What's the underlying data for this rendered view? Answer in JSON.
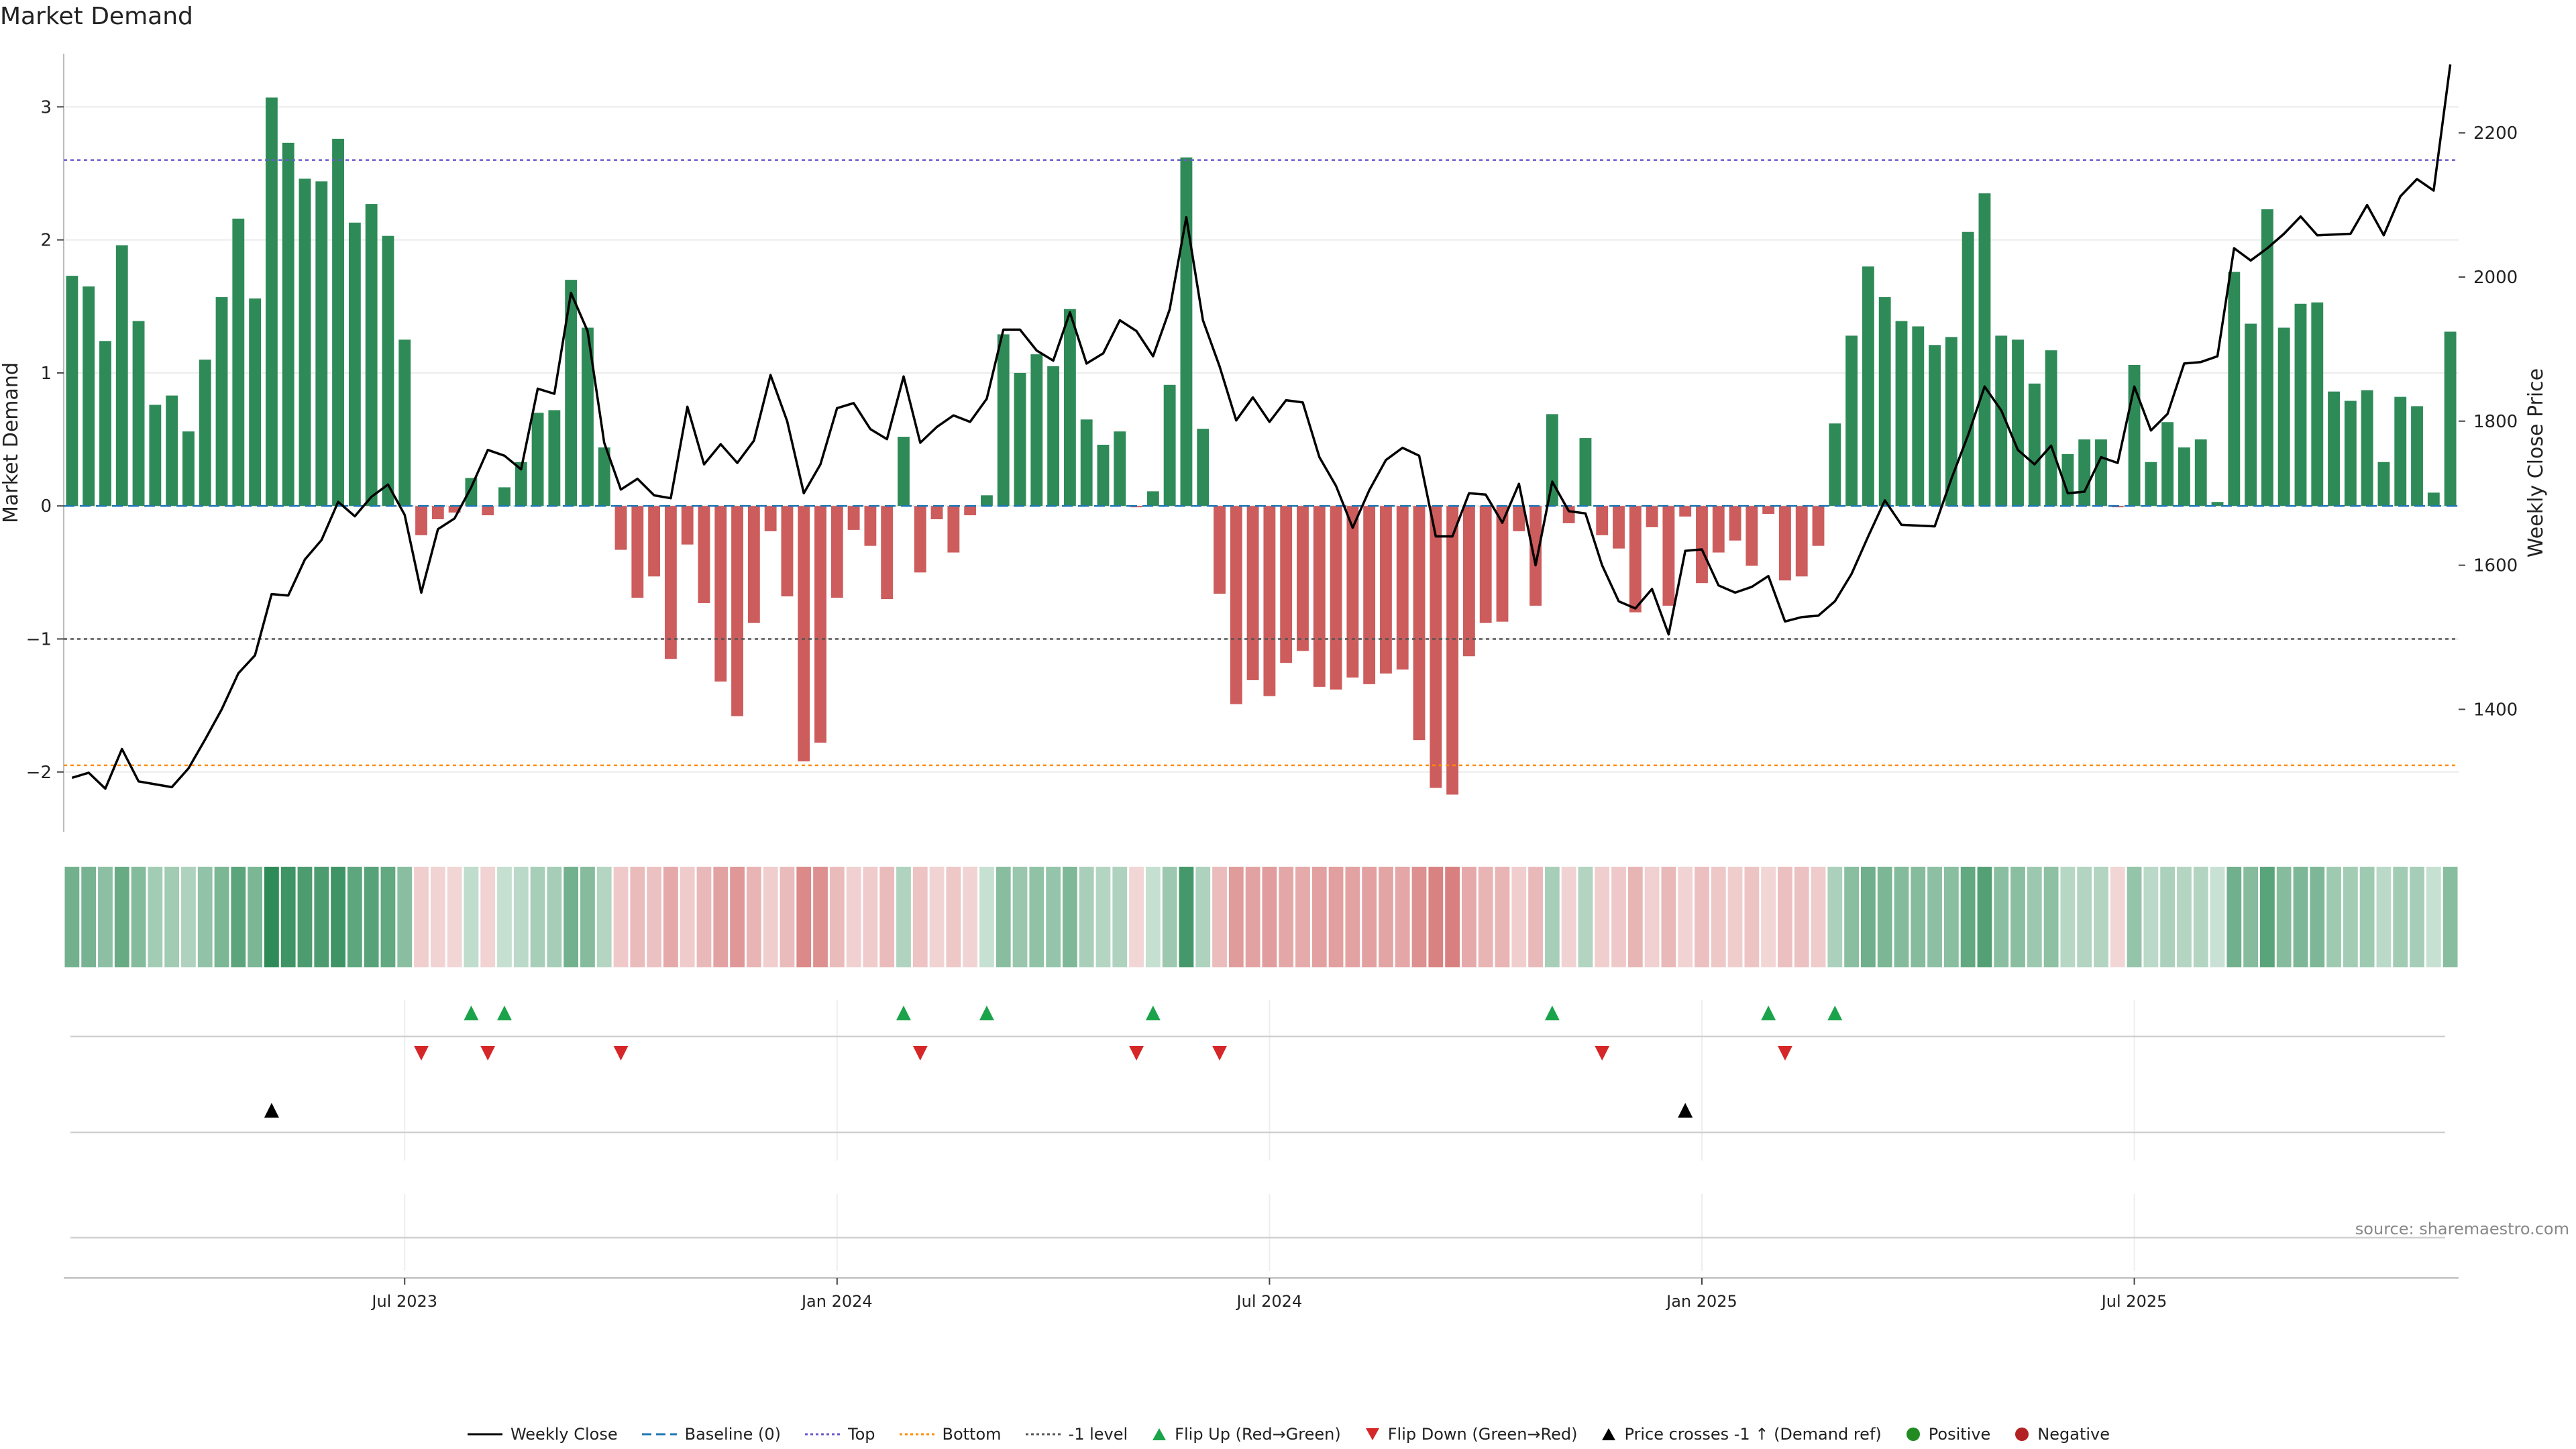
{
  "title": "Market Demand",
  "source": "source: sharemaestro.com",
  "colors": {
    "positive_bar": "#2e8b57",
    "negative_bar": "#cd5c5c",
    "price_line": "#000000",
    "baseline": "#1f77b4",
    "top_line": "#6a5acd",
    "bottom_line": "#ff8c00",
    "minus1_line": "#555555",
    "flip_up": "#1aa34a",
    "flip_down": "#d62728",
    "cross": "#000000",
    "positive_dot": "#228b22",
    "negative_dot": "#b22222"
  },
  "legend": [
    {
      "label": "Weekly Close",
      "symbol": "solid-line",
      "color": "#000000"
    },
    {
      "label": "Baseline (0)",
      "symbol": "dashed-line",
      "color": "#1f77b4"
    },
    {
      "label": "Top",
      "symbol": "dotted-line",
      "color": "#6a5acd"
    },
    {
      "label": "Bottom",
      "symbol": "dotted-line",
      "color": "#ff8c00"
    },
    {
      "label": "-1 level",
      "symbol": "dotted-line",
      "color": "#555555"
    },
    {
      "label": "Flip Up (Red→Green)",
      "symbol": "triangle-up",
      "color": "#1aa34a"
    },
    {
      "label": "Flip Down (Green→Red)",
      "symbol": "triangle-down",
      "color": "#d62728"
    },
    {
      "label": "Price crosses -1 ↑ (Demand ref)",
      "symbol": "triangle-up",
      "color": "#000000"
    },
    {
      "label": "Positive",
      "symbol": "dot",
      "color": "#228b22"
    },
    {
      "label": "Negative",
      "symbol": "dot",
      "color": "#b22222"
    }
  ],
  "chart_data": {
    "type": "bar",
    "title": "Market Demand",
    "ylabel": "Market Demand",
    "y2label": "Weekly Close Price",
    "ylim": [
      -2.45,
      3.4
    ],
    "y2lim": [
      1230,
      2310
    ],
    "yticks": [
      -2,
      -1,
      0,
      1,
      2,
      3
    ],
    "y2ticks": [
      1400,
      1600,
      1800,
      2000,
      2200
    ],
    "x_tick_labels": [
      {
        "label": "Jul 2023",
        "week": 20
      },
      {
        "label": "Jan 2024",
        "week": 46
      },
      {
        "label": "Jul 2024",
        "week": 72
      },
      {
        "label": "Jan 2025",
        "week": 98
      },
      {
        "label": "Jul 2025",
        "week": 124
      }
    ],
    "reference_levels": {
      "top": 2.6,
      "bottom": -1.95,
      "minus_one": -1,
      "baseline": 0
    },
    "series": [
      {
        "name": "Market Demand",
        "type": "bar",
        "values": [
          1.73,
          1.65,
          1.24,
          1.96,
          1.39,
          0.76,
          0.83,
          0.56,
          1.1,
          1.57,
          2.16,
          1.56,
          3.07,
          2.73,
          2.46,
          2.44,
          2.76,
          2.13,
          2.27,
          2.03,
          1.25,
          -0.22,
          -0.1,
          -0.05,
          0.21,
          -0.07,
          0.14,
          0.33,
          0.7,
          0.72,
          1.7,
          1.34,
          0.44,
          -0.33,
          -0.69,
          -0.53,
          -1.15,
          -0.29,
          -0.73,
          -1.32,
          -1.58,
          -0.88,
          -0.19,
          -0.68,
          -1.92,
          -1.78,
          -0.69,
          -0.18,
          -0.3,
          -0.7,
          0.52,
          -0.5,
          -0.1,
          -0.35,
          -0.07,
          0.08,
          1.29,
          1.0,
          1.14,
          1.05,
          1.48,
          0.65,
          0.46,
          0.56,
          -0.01,
          0.11,
          0.91,
          2.62,
          0.58,
          -0.66,
          -1.49,
          -1.31,
          -1.43,
          -1.18,
          -1.09,
          -1.36,
          -1.38,
          -1.29,
          -1.34,
          -1.26,
          -1.23,
          -1.76,
          -2.12,
          -2.17,
          -1.13,
          -0.88,
          -0.87,
          -0.19,
          -0.75,
          0.69,
          -0.13,
          0.51,
          -0.22,
          -0.32,
          -0.8,
          -0.16,
          -0.75,
          -0.08,
          -0.58,
          -0.35,
          -0.26,
          -0.45,
          -0.06,
          -0.56,
          -0.53,
          -0.3,
          0.62,
          1.28,
          1.8,
          1.57,
          1.39,
          1.35,
          1.21,
          1.27,
          2.06,
          2.35,
          1.28,
          1.25,
          0.92,
          1.17,
          0.39,
          0.5,
          0.5,
          -0.01,
          1.06,
          0.33,
          0.63,
          0.44,
          0.5,
          0.03,
          1.76,
          1.37,
          2.23,
          1.34,
          1.52,
          1.53,
          0.86,
          0.79,
          0.87,
          0.33,
          0.82,
          0.75,
          0.1,
          1.31
        ]
      },
      {
        "name": "Weekly Close",
        "type": "line",
        "axis": "right",
        "values": [
          1305,
          1312,
          1290,
          1345,
          1300,
          1296,
          1292,
          1318,
          1358,
          1400,
          1450,
          1475,
          1560,
          1558,
          1608,
          1635,
          1688,
          1668,
          1695,
          1712,
          1670,
          1562,
          1650,
          1665,
          1708,
          1760,
          1752,
          1733,
          1845,
          1838,
          1978,
          1925,
          1770,
          1705,
          1720,
          1697,
          1693,
          1820,
          1740,
          1768,
          1742,
          1773,
          1864,
          1800,
          1700,
          1740,
          1818,
          1825,
          1789,
          1775,
          1862,
          1770,
          1792,
          1808,
          1799,
          1831,
          1927,
          1927,
          1898,
          1884,
          1951,
          1880,
          1894,
          1940,
          1925,
          1890,
          1955,
          2083,
          1940,
          1876,
          1801,
          1833,
          1799,
          1829,
          1826,
          1750,
          1710,
          1652,
          1704,
          1746,
          1763,
          1752,
          1640,
          1640,
          1700,
          1698,
          1659,
          1713,
          1600,
          1716,
          1675,
          1672,
          1600,
          1550,
          1540,
          1567,
          1504,
          1620,
          1622,
          1572,
          1562,
          1570,
          1585,
          1522,
          1528,
          1530,
          1550,
          1588,
          1640,
          1690,
          1656,
          1655,
          1654,
          1720,
          1780,
          1848,
          1815,
          1760,
          1740,
          1766,
          1700,
          1702,
          1750,
          1742,
          1848,
          1787,
          1810,
          1880,
          1882,
          1890,
          2040,
          2023,
          2040,
          2060,
          2084,
          2058,
          2059,
          2060,
          2100,
          2058,
          2112,
          2136,
          2120,
          2295
        ]
      }
    ],
    "flip_up_weeks": [
      24,
      26,
      50,
      55,
      65,
      89,
      102,
      106
    ],
    "flip_down_weeks": [
      21,
      25,
      33,
      51,
      64,
      69,
      92,
      103
    ],
    "price_cross_weeks": [
      12,
      97
    ]
  }
}
